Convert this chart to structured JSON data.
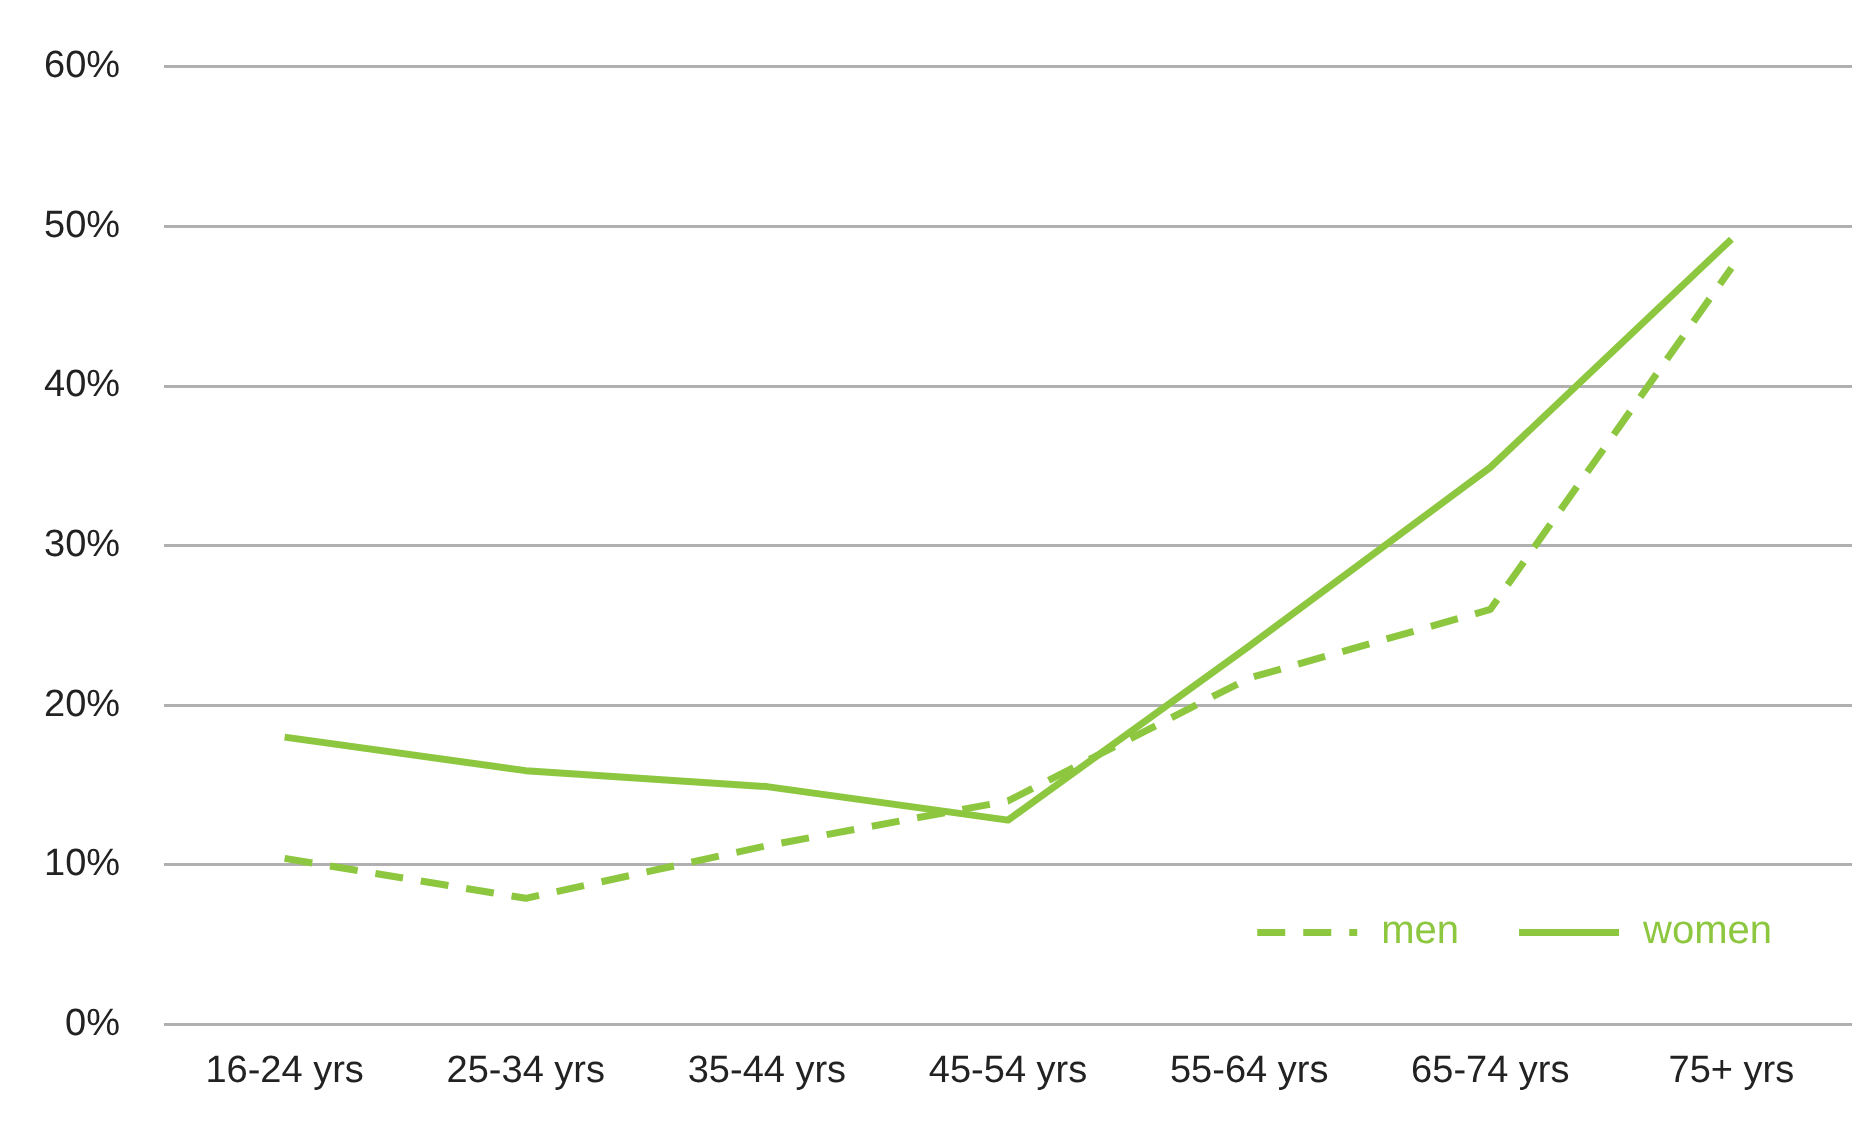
{
  "chart_data": {
    "type": "line",
    "categories": [
      "16-24 yrs",
      "25-34 yrs",
      "35-44 yrs",
      "45-54 yrs",
      "55-64 yrs",
      "65-74 yrs",
      "75+ yrs"
    ],
    "series": [
      {
        "name": "men",
        "color": "#8dc63f",
        "line_style": "dashed",
        "values": [
          10.4,
          7.9,
          11.2,
          14.0,
          21.7,
          26.0,
          47.4
        ]
      },
      {
        "name": "women",
        "color": "#8dc63f",
        "line_style": "solid",
        "values": [
          18.0,
          15.9,
          14.9,
          12.8,
          23.7,
          34.9,
          49.2
        ]
      }
    ],
    "ylim": [
      0,
      60
    ],
    "yticks": [
      {
        "value": 0,
        "label": "0%"
      },
      {
        "value": 10,
        "label": "10%"
      },
      {
        "value": 20,
        "label": "20%"
      },
      {
        "value": 30,
        "label": "30%"
      },
      {
        "value": 40,
        "label": "40%"
      },
      {
        "value": 50,
        "label": "50%"
      },
      {
        "value": 60,
        "label": "60%"
      }
    ],
    "grid": "y",
    "legend": "bottom right",
    "marker": "none"
  }
}
